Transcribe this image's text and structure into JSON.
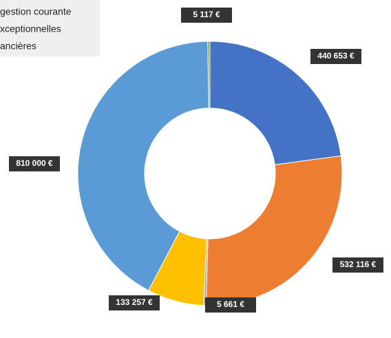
{
  "chart_data": {
    "type": "donut",
    "legend": [
      "gestion courante",
      "xceptionnelles",
      "ancières"
    ],
    "values": [
      440653,
      532116,
      5661,
      133257,
      810000,
      5117
    ],
    "value_labels": [
      "440 653 €",
      "532 116 €",
      "5 661 €",
      "133 257 €",
      "810 000 €",
      "5 117 €"
    ],
    "colors": [
      "#4472c4",
      "#ed7d31",
      "#a5a5a5",
      "#ffc000",
      "#5b9bd5",
      "#70ad47"
    ]
  }
}
